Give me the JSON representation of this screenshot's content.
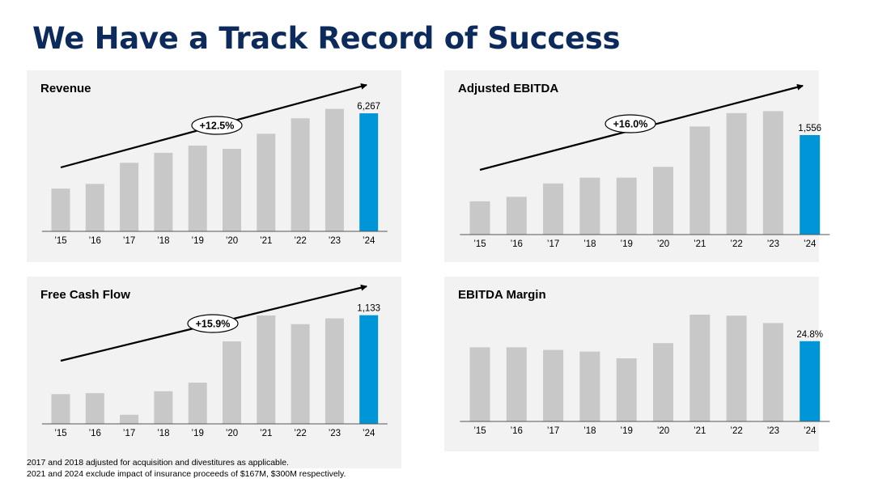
{
  "slide": {
    "title": "We Have a Track Record of Success"
  },
  "colors": {
    "bar_gray": "#c8c8c8",
    "bar_highlight": "#0095d6",
    "title_navy": "#0d2a5c",
    "panel_bg": "#f2f2f2"
  },
  "chart_data": [
    {
      "type": "bar",
      "title": "Revenue",
      "categories": [
        "’15",
        "’16",
        "’17",
        "’18",
        "’19",
        "’20",
        "’21",
        "’22",
        "’23",
        "’24"
      ],
      "values": [
        2270,
        2520,
        3640,
        4170,
        4550,
        4380,
        5180,
        6000,
        6500,
        6267
      ],
      "ylim": [
        0,
        7000
      ],
      "highlight_index": 9,
      "data_labels": {
        "9": "6,267"
      },
      "trend_label": "+12.5%",
      "legend": "none",
      "grid": false
    },
    {
      "type": "bar",
      "title": "Adjusted EBITDA",
      "categories": [
        "’15",
        "’16",
        "’17",
        "’18",
        "’19",
        "’20",
        "’21",
        "’22",
        "’23",
        "’24"
      ],
      "values": [
        520,
        590,
        800,
        890,
        890,
        1060,
        1690,
        1900,
        1930,
        1556
      ],
      "ylim": [
        0,
        2100
      ],
      "highlight_index": 9,
      "data_labels": {
        "9": "1,556"
      },
      "trend_label": "+16.0%",
      "legend": "none",
      "grid": false
    },
    {
      "type": "bar",
      "title": "Free Cash Flow",
      "categories": [
        "’15",
        "’16",
        "’17",
        "’18",
        "’19",
        "’20",
        "’21",
        "’22",
        "’23",
        "’24"
      ],
      "values": [
        310,
        320,
        95,
        340,
        430,
        860,
        1130,
        1040,
        1100,
        1133
      ],
      "ylim": [
        0,
        1240
      ],
      "highlight_index": 9,
      "data_labels": {
        "9": "1,133"
      },
      "trend_label": "+15.9%",
      "legend": "none",
      "grid": false
    },
    {
      "type": "bar",
      "title": "EBITDA Margin",
      "categories": [
        "’15",
        "’16",
        "’17",
        "’18",
        "’19",
        "’20",
        "’21",
        "’22",
        "’23",
        "’24"
      ],
      "values": [
        22.9,
        22.9,
        22.1,
        21.6,
        19.5,
        24.2,
        33.0,
        32.7,
        30.4,
        24.8
      ],
      "value_unit": "%",
      "ylim": [
        0,
        39
      ],
      "highlight_index": 9,
      "data_labels": {
        "9": "24.8%"
      },
      "trend_label": "",
      "legend": "none",
      "grid": false
    }
  ],
  "footnotes": [
    "2017 and 2018 adjusted for acquisition and divestitures as applicable.",
    "2021 and 2024 exclude impact of insurance proceeds of $167M, $300M respectively."
  ]
}
